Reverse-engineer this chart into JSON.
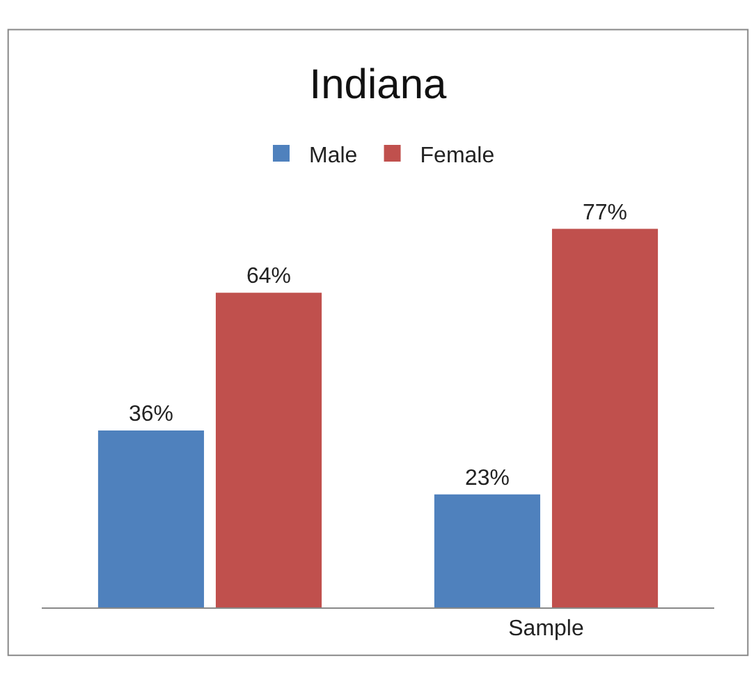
{
  "chart_data": {
    "type": "bar",
    "title": "Indiana",
    "categories": [
      null,
      "Sample"
    ],
    "series": [
      {
        "name": "Male",
        "color": "#4f81bd",
        "values": [
          36,
          23
        ],
        "value_labels": [
          "36%",
          "23%"
        ]
      },
      {
        "name": "Female",
        "color": "#c0504d",
        "values": [
          64,
          77
        ],
        "value_labels": [
          "64%",
          "77%"
        ]
      }
    ],
    "legend": "top"
  }
}
